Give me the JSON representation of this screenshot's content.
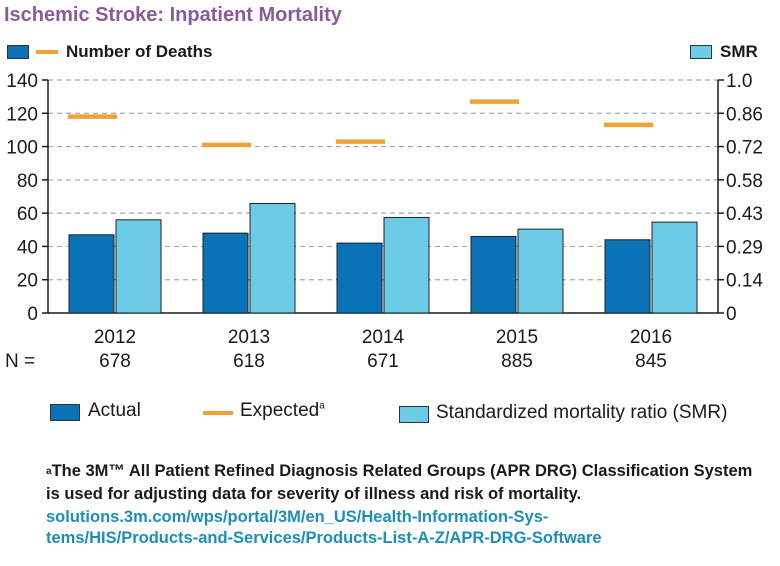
{
  "title": "Ischemic Stroke: Inpatient Mortality",
  "colors": {
    "title": "#8a5a9a",
    "actual": "#0a72b6",
    "smr": "#6ccbe6",
    "expected": "#f0a239",
    "link": "#1a8fb8",
    "grid": "#aaaaaa"
  },
  "left_axis_key": "Number of Deaths",
  "right_axis_key": "SMR",
  "n_label": "N =",
  "chart_data": {
    "type": "bar",
    "categories": [
      "2012",
      "2013",
      "2014",
      "2015",
      "2016"
    ],
    "n_values": [
      "678",
      "618",
      "671",
      "885",
      "845"
    ],
    "series": [
      {
        "name": "Actual",
        "kind": "bar",
        "axis": "left",
        "values": [
          47,
          48,
          42,
          46,
          44
        ]
      },
      {
        "name": "Expected",
        "kind": "marker",
        "axis": "left",
        "values": [
          118,
          101,
          103,
          127,
          113
        ]
      },
      {
        "name": "Standardized mortality ratio (SMR)",
        "kind": "bar",
        "axis": "right",
        "values": [
          0.4,
          0.47,
          0.41,
          0.36,
          0.39
        ]
      }
    ],
    "ylim": [
      0,
      140
    ],
    "y_ticks": [
      "0",
      "20",
      "40",
      "60",
      "80",
      "100",
      "120",
      "140"
    ],
    "y2lim": [
      0,
      1.0
    ],
    "y2_ticks": [
      "0",
      "0.14",
      "0.29",
      "0.43",
      "0.58",
      "0.72",
      "0.86",
      "1.0"
    ],
    "grid": true
  },
  "legend": {
    "actual": "Actual",
    "expected": "Expected",
    "expected_sup": "a",
    "smr": "Standardized mortality ratio (SMR)"
  },
  "footnote": {
    "sup": "a",
    "text": "The 3M™ All Patient Refined Diagnosis Related Groups (APR DRG) Classification System is used for adjusting data for severity of illness and risk of mortality.",
    "link_line1": "solutions.3m.com/wps/portal/3M/en_US/Health-Information-Sys-",
    "link_line2": "tems/HIS/Products-and-Services/Products-List-A-Z/APR-DRG-Software"
  }
}
